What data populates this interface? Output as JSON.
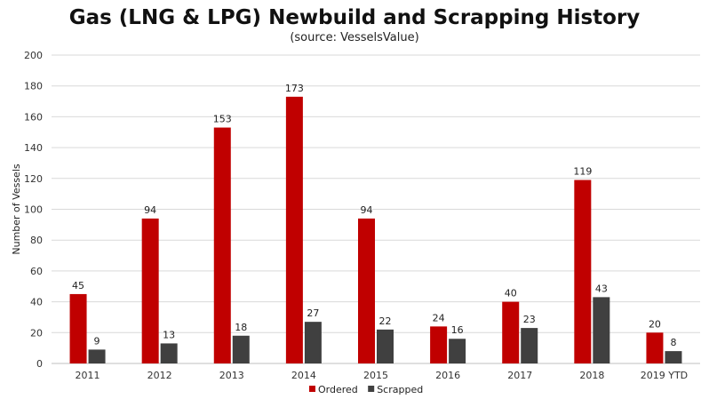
{
  "chart_data": {
    "type": "bar",
    "title": "Gas (LNG & LPG) Newbuild and Scrapping History",
    "subtitle": "(source: VesselsValue)",
    "xlabel": "",
    "ylabel": "Number  of Vessels",
    "ylim": [
      0,
      200
    ],
    "yticks": [
      0,
      20,
      40,
      60,
      80,
      100,
      120,
      140,
      160,
      180,
      200
    ],
    "grid": true,
    "legend": "bottom-center",
    "categories": [
      "2011",
      "2012",
      "2013",
      "2014",
      "2015",
      "2016",
      "2017",
      "2018",
      "2019 YTD"
    ],
    "series": [
      {
        "name": "Ordered",
        "color": "#c00000",
        "values": [
          45,
          94,
          153,
          173,
          94,
          24,
          40,
          119,
          20
        ]
      },
      {
        "name": "Scrapped",
        "color": "#404040",
        "values": [
          9,
          13,
          18,
          27,
          22,
          16,
          23,
          43,
          8
        ]
      }
    ]
  }
}
